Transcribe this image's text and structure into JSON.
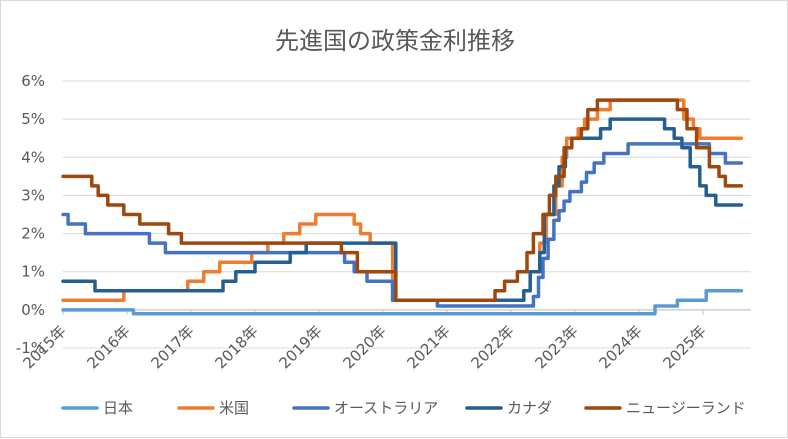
{
  "chart_data": {
    "type": "line",
    "title": "先進国の政策金利推移",
    "y_ticks": [
      "-1%",
      "0%",
      "1%",
      "2%",
      "3%",
      "4%",
      "5%",
      "6%"
    ],
    "ylim": [
      -1,
      6
    ],
    "x_ticks": [
      "2015年",
      "2016年",
      "2017年",
      "2018年",
      "2019年",
      "2020年",
      "2021年",
      "2022年",
      "2023年",
      "2024年",
      "2025年"
    ],
    "xlim": [
      2015,
      2025.75
    ],
    "grid": true,
    "legend_position": "bottom",
    "series": [
      {
        "name": "日本",
        "color": "#5b9bd5",
        "points": [
          [
            2015,
            0
          ],
          [
            2016.1,
            0
          ],
          [
            2016.1,
            -0.1
          ],
          [
            2024.25,
            -0.1
          ],
          [
            2024.25,
            0.1
          ],
          [
            2024.6,
            0.1
          ],
          [
            2024.6,
            0.25
          ],
          [
            2025.05,
            0.25
          ],
          [
            2025.05,
            0.5
          ],
          [
            2025.6,
            0.5
          ]
        ]
      },
      {
        "name": "米国",
        "color": "#ed7d31",
        "points": [
          [
            2015,
            0.25
          ],
          [
            2015.95,
            0.25
          ],
          [
            2015.95,
            0.5
          ],
          [
            2016.95,
            0.5
          ],
          [
            2016.95,
            0.75
          ],
          [
            2017.2,
            0.75
          ],
          [
            2017.2,
            1.0
          ],
          [
            2017.45,
            1.0
          ],
          [
            2017.45,
            1.25
          ],
          [
            2017.95,
            1.25
          ],
          [
            2017.95,
            1.5
          ],
          [
            2018.2,
            1.5
          ],
          [
            2018.2,
            1.75
          ],
          [
            2018.45,
            1.75
          ],
          [
            2018.45,
            2.0
          ],
          [
            2018.7,
            2.0
          ],
          [
            2018.7,
            2.25
          ],
          [
            2018.95,
            2.25
          ],
          [
            2018.95,
            2.5
          ],
          [
            2019.55,
            2.5
          ],
          [
            2019.55,
            2.25
          ],
          [
            2019.65,
            2.25
          ],
          [
            2019.65,
            2.0
          ],
          [
            2019.8,
            2.0
          ],
          [
            2019.8,
            1.75
          ],
          [
            2020.15,
            1.75
          ],
          [
            2020.15,
            0.25
          ],
          [
            2022.2,
            0.25
          ],
          [
            2022.2,
            0.5
          ],
          [
            2022.3,
            0.5
          ],
          [
            2022.3,
            1.0
          ],
          [
            2022.45,
            1.0
          ],
          [
            2022.45,
            1.75
          ],
          [
            2022.55,
            1.75
          ],
          [
            2022.55,
            2.5
          ],
          [
            2022.7,
            2.5
          ],
          [
            2022.7,
            3.25
          ],
          [
            2022.8,
            3.25
          ],
          [
            2022.8,
            4.0
          ],
          [
            2022.87,
            4.0
          ],
          [
            2022.87,
            4.5
          ],
          [
            2023.05,
            4.5
          ],
          [
            2023.05,
            4.75
          ],
          [
            2023.15,
            4.75
          ],
          [
            2023.15,
            5.0
          ],
          [
            2023.35,
            5.0
          ],
          [
            2023.35,
            5.25
          ],
          [
            2023.55,
            5.25
          ],
          [
            2023.55,
            5.5
          ],
          [
            2024.7,
            5.5
          ],
          [
            2024.7,
            5.0
          ],
          [
            2024.85,
            5.0
          ],
          [
            2024.85,
            4.75
          ],
          [
            2024.95,
            4.75
          ],
          [
            2024.95,
            4.5
          ],
          [
            2025.6,
            4.5
          ]
        ]
      },
      {
        "name": "オーストラリア",
        "color": "#4472c4",
        "points": [
          [
            2015,
            2.5
          ],
          [
            2015.08,
            2.5
          ],
          [
            2015.08,
            2.25
          ],
          [
            2015.35,
            2.25
          ],
          [
            2015.35,
            2.0
          ],
          [
            2016.35,
            2.0
          ],
          [
            2016.35,
            1.75
          ],
          [
            2016.6,
            1.75
          ],
          [
            2016.6,
            1.5
          ],
          [
            2019.4,
            1.5
          ],
          [
            2019.4,
            1.25
          ],
          [
            2019.55,
            1.25
          ],
          [
            2019.55,
            1.0
          ],
          [
            2019.75,
            1.0
          ],
          [
            2019.75,
            0.75
          ],
          [
            2020.15,
            0.75
          ],
          [
            2020.15,
            0.25
          ],
          [
            2020.85,
            0.25
          ],
          [
            2020.85,
            0.1
          ],
          [
            2022.35,
            0.1
          ],
          [
            2022.35,
            0.35
          ],
          [
            2022.43,
            0.35
          ],
          [
            2022.43,
            0.85
          ],
          [
            2022.5,
            0.85
          ],
          [
            2022.5,
            1.35
          ],
          [
            2022.58,
            1.35
          ],
          [
            2022.58,
            1.85
          ],
          [
            2022.67,
            1.85
          ],
          [
            2022.67,
            2.35
          ],
          [
            2022.75,
            2.35
          ],
          [
            2022.75,
            2.6
          ],
          [
            2022.83,
            2.6
          ],
          [
            2022.83,
            2.85
          ],
          [
            2022.92,
            2.85
          ],
          [
            2022.92,
            3.1
          ],
          [
            2023.1,
            3.1
          ],
          [
            2023.1,
            3.35
          ],
          [
            2023.18,
            3.35
          ],
          [
            2023.18,
            3.6
          ],
          [
            2023.3,
            3.6
          ],
          [
            2023.3,
            3.85
          ],
          [
            2023.45,
            3.85
          ],
          [
            2023.45,
            4.1
          ],
          [
            2023.83,
            4.1
          ],
          [
            2023.83,
            4.35
          ],
          [
            2025.1,
            4.35
          ],
          [
            2025.1,
            4.1
          ],
          [
            2025.35,
            4.1
          ],
          [
            2025.35,
            3.85
          ],
          [
            2025.6,
            3.85
          ]
        ]
      },
      {
        "name": "カナダ",
        "color": "#255e91",
        "points": [
          [
            2015,
            0.75
          ],
          [
            2015.5,
            0.75
          ],
          [
            2015.5,
            0.5
          ],
          [
            2017.5,
            0.5
          ],
          [
            2017.5,
            0.75
          ],
          [
            2017.7,
            0.75
          ],
          [
            2017.7,
            1.0
          ],
          [
            2018.0,
            1.0
          ],
          [
            2018.0,
            1.25
          ],
          [
            2018.55,
            1.25
          ],
          [
            2018.55,
            1.5
          ],
          [
            2018.8,
            1.5
          ],
          [
            2018.8,
            1.75
          ],
          [
            2020.2,
            1.75
          ],
          [
            2020.2,
            0.25
          ],
          [
            2022.2,
            0.25
          ],
          [
            2022.2,
            0.5
          ],
          [
            2022.3,
            0.5
          ],
          [
            2022.3,
            1.0
          ],
          [
            2022.45,
            1.0
          ],
          [
            2022.45,
            1.5
          ],
          [
            2022.52,
            1.5
          ],
          [
            2022.52,
            2.5
          ],
          [
            2022.67,
            2.5
          ],
          [
            2022.67,
            3.25
          ],
          [
            2022.75,
            3.25
          ],
          [
            2022.75,
            3.75
          ],
          [
            2022.85,
            3.75
          ],
          [
            2022.85,
            4.25
          ],
          [
            2022.95,
            4.25
          ],
          [
            2022.95,
            4.5
          ],
          [
            2023.4,
            4.5
          ],
          [
            2023.4,
            4.75
          ],
          [
            2023.55,
            4.75
          ],
          [
            2023.55,
            5.0
          ],
          [
            2024.4,
            5.0
          ],
          [
            2024.4,
            4.75
          ],
          [
            2024.55,
            4.75
          ],
          [
            2024.55,
            4.5
          ],
          [
            2024.67,
            4.5
          ],
          [
            2024.67,
            4.25
          ],
          [
            2024.8,
            4.25
          ],
          [
            2024.8,
            3.75
          ],
          [
            2024.95,
            3.75
          ],
          [
            2024.95,
            3.25
          ],
          [
            2025.05,
            3.25
          ],
          [
            2025.05,
            3.0
          ],
          [
            2025.2,
            3.0
          ],
          [
            2025.2,
            2.75
          ],
          [
            2025.6,
            2.75
          ]
        ]
      },
      {
        "name": "ニュージーランド",
        "color": "#9e480e",
        "points": [
          [
            2015,
            3.5
          ],
          [
            2015.45,
            3.5
          ],
          [
            2015.45,
            3.25
          ],
          [
            2015.55,
            3.25
          ],
          [
            2015.55,
            3.0
          ],
          [
            2015.7,
            3.0
          ],
          [
            2015.7,
            2.75
          ],
          [
            2015.95,
            2.75
          ],
          [
            2015.95,
            2.5
          ],
          [
            2016.2,
            2.5
          ],
          [
            2016.2,
            2.25
          ],
          [
            2016.65,
            2.25
          ],
          [
            2016.65,
            2.0
          ],
          [
            2016.85,
            2.0
          ],
          [
            2016.85,
            1.75
          ],
          [
            2019.35,
            1.75
          ],
          [
            2019.35,
            1.5
          ],
          [
            2019.6,
            1.5
          ],
          [
            2019.6,
            1.0
          ],
          [
            2020.2,
            1.0
          ],
          [
            2020.2,
            0.25
          ],
          [
            2021.75,
            0.25
          ],
          [
            2021.75,
            0.5
          ],
          [
            2021.9,
            0.5
          ],
          [
            2021.9,
            0.75
          ],
          [
            2022.1,
            0.75
          ],
          [
            2022.1,
            1.0
          ],
          [
            2022.25,
            1.0
          ],
          [
            2022.25,
            1.5
          ],
          [
            2022.35,
            1.5
          ],
          [
            2022.35,
            2.0
          ],
          [
            2022.5,
            2.0
          ],
          [
            2022.5,
            2.5
          ],
          [
            2022.6,
            2.5
          ],
          [
            2022.6,
            3.0
          ],
          [
            2022.7,
            3.0
          ],
          [
            2022.7,
            3.5
          ],
          [
            2022.83,
            3.5
          ],
          [
            2022.83,
            4.25
          ],
          [
            2022.95,
            4.25
          ],
          [
            2022.95,
            4.5
          ],
          [
            2023.1,
            4.5
          ],
          [
            2023.1,
            4.75
          ],
          [
            2023.2,
            4.75
          ],
          [
            2023.2,
            5.25
          ],
          [
            2023.35,
            5.25
          ],
          [
            2023.35,
            5.5
          ],
          [
            2024.6,
            5.5
          ],
          [
            2024.6,
            5.25
          ],
          [
            2024.75,
            5.25
          ],
          [
            2024.75,
            4.75
          ],
          [
            2024.9,
            4.75
          ],
          [
            2024.9,
            4.25
          ],
          [
            2025.1,
            4.25
          ],
          [
            2025.1,
            3.75
          ],
          [
            2025.25,
            3.75
          ],
          [
            2025.25,
            3.5
          ],
          [
            2025.35,
            3.5
          ],
          [
            2025.35,
            3.25
          ],
          [
            2025.6,
            3.25
          ]
        ]
      }
    ]
  }
}
